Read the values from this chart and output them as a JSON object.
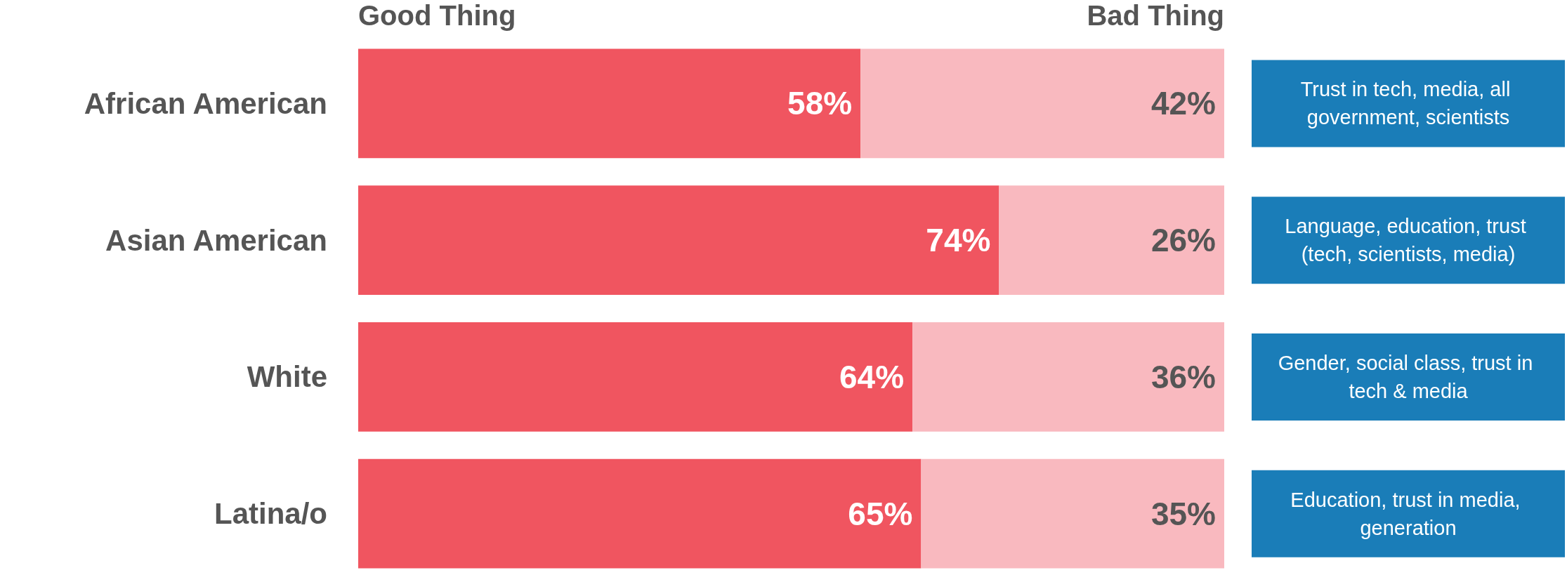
{
  "chart_data": {
    "type": "bar",
    "orientation": "horizontal",
    "stacked": true,
    "categories": [
      "African American",
      "Asian American",
      "White",
      "Latina/o"
    ],
    "series": [
      {
        "name": "Good Thing",
        "color": "#f05560",
        "values": [
          58,
          74,
          64,
          65
        ],
        "value_labels": [
          "58%",
          "74%",
          "64%",
          "65%"
        ]
      },
      {
        "name": "Bad Thing",
        "color": "#f9b9bf",
        "values": [
          42,
          26,
          36,
          35
        ],
        "value_labels": [
          "42%",
          "26%",
          "36%",
          "35%"
        ]
      }
    ],
    "xlim": [
      0,
      100
    ],
    "annotations": [
      "Trust in tech, media, all government, scientists",
      "Language, education, trust (tech, scientists, media)",
      "Gender, social class, trust in tech & media",
      "Education, trust in media, generation"
    ],
    "legend": false
  }
}
